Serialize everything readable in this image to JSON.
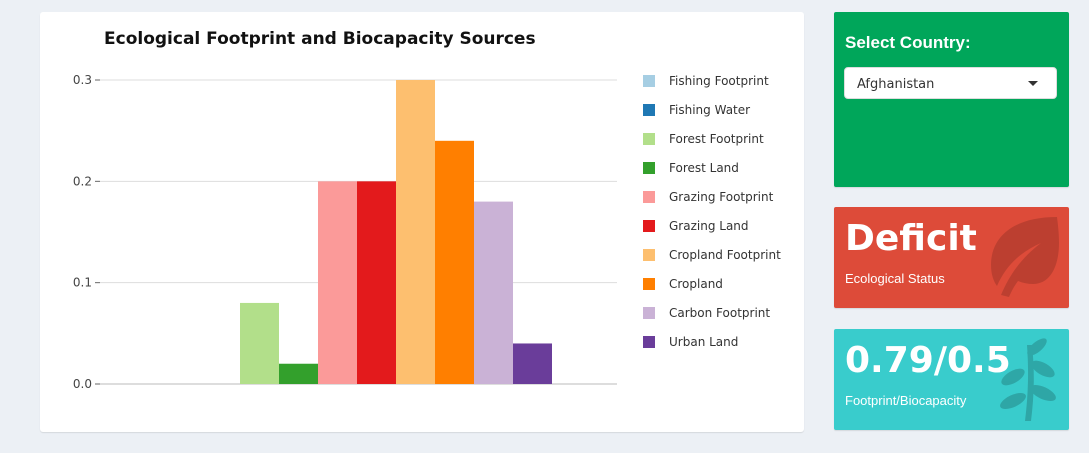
{
  "chart_data": {
    "type": "bar",
    "title": "Ecological Footprint and Biocapacity Sources",
    "xlabel": "",
    "ylabel": "",
    "ylim": [
      0,
      0.3
    ],
    "yticks": [
      0.0,
      0.1,
      0.2,
      0.3
    ],
    "ytick_labels": [
      "0.0",
      "0.1",
      "0.2",
      "0.3"
    ],
    "grid": true,
    "legend_position": "right",
    "series": [
      {
        "name": "Fishing Footprint",
        "value": 0,
        "color": "#a6cee3"
      },
      {
        "name": "Fishing Water",
        "value": 0,
        "color": "#1f78b4"
      },
      {
        "name": "Forest Footprint",
        "value": 0.08,
        "color": "#b2df8a"
      },
      {
        "name": "Forest Land",
        "value": 0.02,
        "color": "#33a02c"
      },
      {
        "name": "Grazing Footprint",
        "value": 0.2,
        "color": "#fb9a99"
      },
      {
        "name": "Grazing Land",
        "value": 0.2,
        "color": "#e31a1c"
      },
      {
        "name": "Cropland Footprint",
        "value": 0.3,
        "color": "#fdbf6f"
      },
      {
        "name": "Cropland",
        "value": 0.24,
        "color": "#ff7f00"
      },
      {
        "name": "Carbon Footprint",
        "value": 0.18,
        "color": "#cab2d6"
      },
      {
        "name": "Urban Land",
        "value": 0.04,
        "color": "#6a3d9a"
      }
    ]
  },
  "country_select": {
    "title": "Select Country:",
    "selected": "Afghanistan",
    "color": "#00a65a"
  },
  "status_box": {
    "value": "Deficit",
    "label": "Ecological Status",
    "color": "#dd4b39",
    "icon": "leaf-icon"
  },
  "ratio_box": {
    "value": "0.79/0.5",
    "label": "Footprint/Biocapacity",
    "color": "#39cccc",
    "icon": "pagelines-icon"
  }
}
